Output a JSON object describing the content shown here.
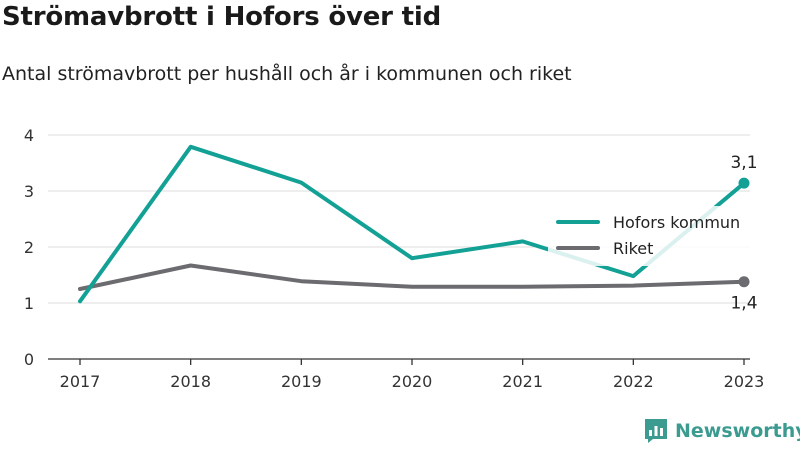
{
  "header": {
    "title": "Strömavbrott i Hofors över tid",
    "subtitle": "Antal strömavbrott per hushåll och år i kommunen och riket"
  },
  "brand": {
    "name": "Newsworthy",
    "icon": "newsworthy-logo-icon",
    "color": "#3b9b90"
  },
  "chart_data": {
    "type": "line",
    "title": "Strömavbrott i Hofors över tid",
    "subtitle": "Antal strömavbrott per hushåll och år i kommunen och riket",
    "xlabel": "",
    "ylabel": "",
    "x": [
      "2017",
      "2018",
      "2019",
      "2020",
      "2021",
      "2022",
      "2023"
    ],
    "y_ticks": [
      "0",
      "1",
      "2",
      "3",
      "4"
    ],
    "ylim": [
      0,
      4.2
    ],
    "grid": true,
    "legend": "right",
    "series": [
      {
        "name": "Hofors kommun",
        "color": "#13a196",
        "values": [
          1.03,
          3.79,
          3.15,
          1.8,
          2.1,
          1.48,
          3.14
        ]
      },
      {
        "name": "Riket",
        "color": "#6b6b70",
        "values": [
          1.25,
          1.67,
          1.39,
          1.29,
          1.29,
          1.31,
          1.38
        ]
      }
    ],
    "annotations": [
      {
        "series": 0,
        "index": 6,
        "text": "3,1",
        "position": "above"
      },
      {
        "series": 1,
        "index": 6,
        "text": "1,4",
        "position": "below"
      }
    ]
  }
}
